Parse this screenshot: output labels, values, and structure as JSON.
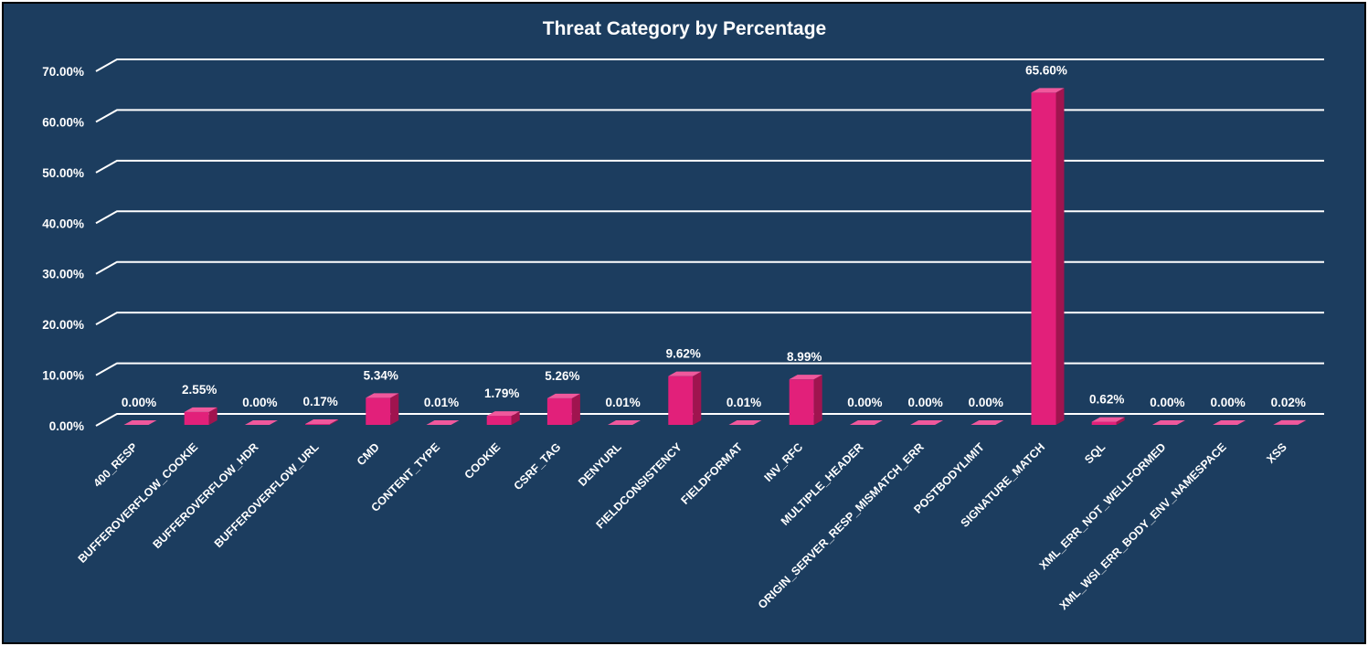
{
  "chart_data": {
    "type": "bar",
    "title": "Threat Category by Percentage",
    "xlabel": "",
    "ylabel": "",
    "ylim": [
      0,
      70
    ],
    "yticks": [
      "0.00%",
      "10.00%",
      "20.00%",
      "30.00%",
      "40.00%",
      "50.00%",
      "60.00%",
      "70.00%"
    ],
    "grid": true,
    "legend": "none",
    "style": "3d-column",
    "colors": {
      "background": "#1c3d5f",
      "bar": "#e2207a",
      "bar_side": "#a0144f",
      "bar_top": "#f0589c",
      "gridline": "#ffffff",
      "text": "#ffffff"
    },
    "categories": [
      "400_RESP",
      "BUFFEROVERFLOW_COOKIE",
      "BUFFEROVERFLOW_HDR",
      "BUFFEROVERFLOW_URL",
      "CMD",
      "CONTENT_TYPE",
      "COOKIE",
      "CSRF_TAG",
      "DENYURL",
      "FIELDCONSISTENCY",
      "FIELDFORMAT",
      "INV_RFC",
      "MULTIPLE_HEADER",
      "ORIGIN_SERVER_RESP_MISMATCH_ERR",
      "POSTBODYLIMIT",
      "SIGNATURE_MATCH",
      "SQL",
      "XML_ERR_NOT_WELLFORMED",
      "XML_WSI_ERR_BODY_ENV_NAMESPACE",
      "XSS"
    ],
    "values": [
      0.0,
      2.55,
      0.0,
      0.17,
      5.34,
      0.01,
      1.79,
      5.26,
      0.01,
      9.62,
      0.01,
      8.99,
      0.0,
      0.0,
      0.0,
      65.6,
      0.62,
      0.0,
      0.0,
      0.02
    ],
    "data_labels": [
      "0.00%",
      "2.55%",
      "0.00%",
      "0.17%",
      "5.34%",
      "0.01%",
      "1.79%",
      "5.26%",
      "0.01%",
      "9.62%",
      "0.01%",
      "8.99%",
      "0.00%",
      "0.00%",
      "0.00%",
      "65.60%",
      "0.62%",
      "0.00%",
      "0.00%",
      "0.02%"
    ]
  }
}
